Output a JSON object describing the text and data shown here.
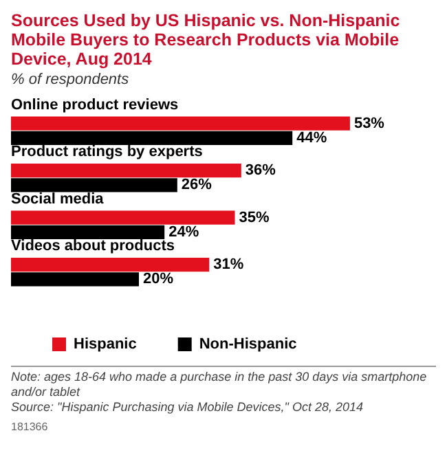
{
  "chart_data": {
    "type": "bar",
    "orientation": "horizontal",
    "title": "Sources Used by US Hispanic vs. Non-Hispanic Mobile Buyers to Research Products via Mobile Device, Aug 2014",
    "subtitle": "% of respondents",
    "categories": [
      "Online product reviews",
      "Product ratings by experts",
      "Social media",
      "Videos about products"
    ],
    "series": [
      {
        "name": "Hispanic",
        "color": "#e3101e",
        "values": [
          53,
          36,
          35,
          31
        ],
        "value_labels": [
          "53%",
          "36%",
          "35%",
          "31%"
        ]
      },
      {
        "name": "Non-Hispanic",
        "color": "#000000",
        "values": [
          44,
          26,
          24,
          20
        ],
        "value_labels": [
          "44%",
          "26%",
          "24%",
          "20%"
        ]
      }
    ],
    "legend": "bottom left",
    "annotations": [
      "Note: ages 18-64 who made a purchase in the past 30 days via smartphone and/or tablet",
      "Source: \"Hispanic Purchasing via Mobile Devices,\" Oct 28, 2014",
      "181366"
    ]
  }
}
